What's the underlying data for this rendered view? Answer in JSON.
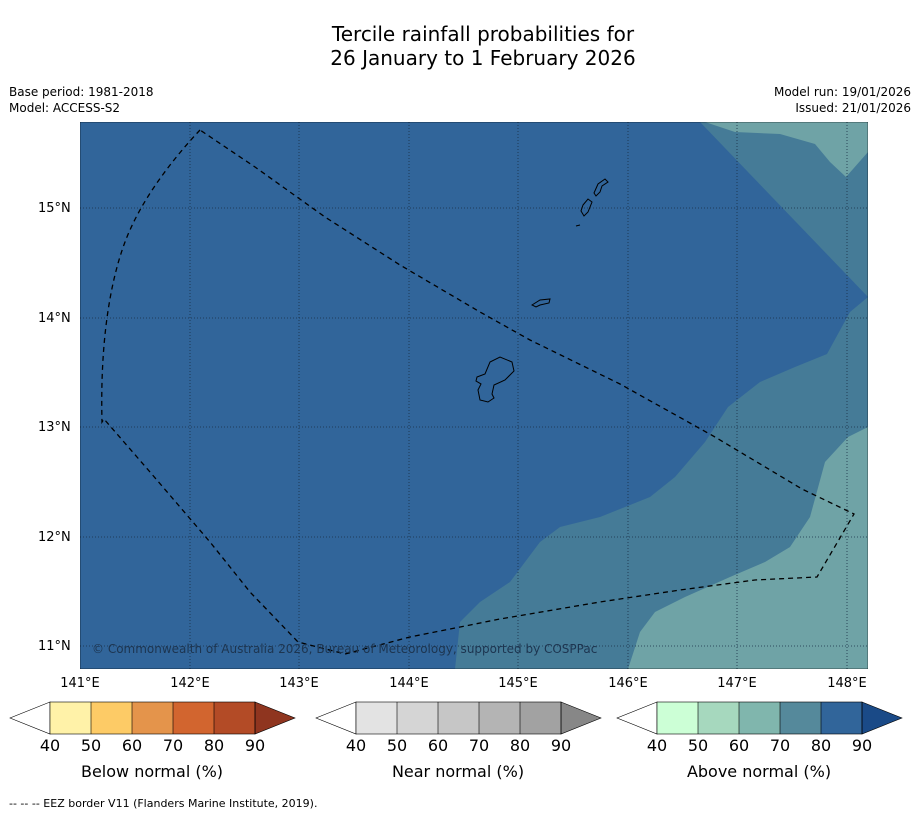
{
  "title": {
    "line1": "Tercile rainfall probabilities for",
    "line2": "26 January to 1 February 2026"
  },
  "meta_left": {
    "base_period": "Base period: 1981-2018",
    "model": "Model: ACCESS-S2"
  },
  "meta_right": {
    "model_run": "Model run: 19/01/2026",
    "issued": "Issued: 21/01/2026"
  },
  "map": {
    "lon_ticks": [
      "141°E",
      "142°E",
      "143°E",
      "144°E",
      "145°E",
      "146°E",
      "147°E",
      "148°E"
    ],
    "lat_ticks": [
      "15°N",
      "14°N",
      "13°N",
      "12°N",
      "11°N"
    ],
    "lon_range": [
      141,
      148.2
    ],
    "lat_range": [
      10.8,
      15.8
    ],
    "copyright": "© Commonwealth of Australia 2026, Bureau of Meteorology, supported by COSPPac",
    "regions": [
      {
        "category": "Above normal",
        "class": "80-90%",
        "color": "#31659a"
      },
      {
        "category": "Above normal",
        "class": "70-80%",
        "color": "#457b97"
      },
      {
        "category": "Above normal",
        "class": "60-70%",
        "color": "#6fa3a6"
      }
    ]
  },
  "colorbars": [
    {
      "label": "Below normal (%)",
      "ticks": [
        "40",
        "50",
        "60",
        "70",
        "80",
        "90"
      ],
      "colors": [
        "#fff2a8",
        "#fdcb66",
        "#e4944b",
        "#d2652f",
        "#b34b26",
        "#8f351f"
      ]
    },
    {
      "label": "Near normal (%)",
      "ticks": [
        "40",
        "50",
        "60",
        "70",
        "80",
        "90"
      ],
      "colors": [
        "#e3e3e3",
        "#d5d5d5",
        "#c6c6c6",
        "#b4b4b4",
        "#a2a2a2",
        "#878787"
      ]
    },
    {
      "label": "Above normal (%)",
      "ticks": [
        "40",
        "50",
        "60",
        "70",
        "80",
        "90"
      ],
      "colors": [
        "#ccffd6",
        "#a6d8be",
        "#80b6ad",
        "#55899b",
        "#31659a",
        "#1a4a87"
      ]
    }
  ],
  "footnote": "-- -- -- EEZ border V11 (Flanders Marine Institute, 2019)."
}
